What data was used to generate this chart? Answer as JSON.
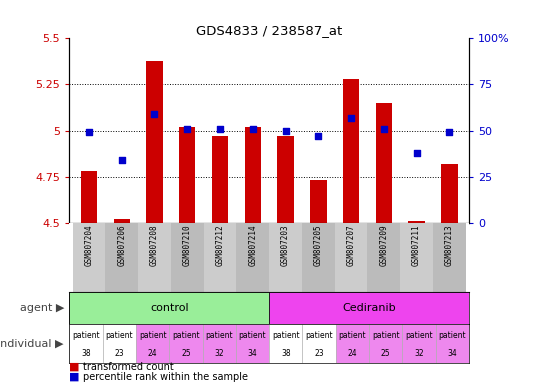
{
  "title": "GDS4833 / 238587_at",
  "samples": [
    "GSM807204",
    "GSM807206",
    "GSM807208",
    "GSM807210",
    "GSM807212",
    "GSM807214",
    "GSM807203",
    "GSM807205",
    "GSM807207",
    "GSM807209",
    "GSM807211",
    "GSM807213"
  ],
  "transformed_counts": [
    4.78,
    4.52,
    5.38,
    5.02,
    4.97,
    5.02,
    4.97,
    4.73,
    5.28,
    5.15,
    4.51,
    4.82
  ],
  "percentile_ranks": [
    49,
    34,
    59,
    51,
    51,
    51,
    50,
    47,
    57,
    51,
    38,
    49
  ],
  "ylim_left": [
    4.5,
    5.5
  ],
  "ylim_right": [
    0,
    100
  ],
  "yticks_left": [
    4.5,
    4.75,
    5.0,
    5.25,
    5.5
  ],
  "ytick_labels_left": [
    "4.5",
    "4.75",
    "5",
    "5.25",
    "5.5"
  ],
  "yticks_right": [
    0,
    25,
    50,
    75,
    100
  ],
  "ytick_labels_right": [
    "0",
    "25",
    "50",
    "75",
    "100%"
  ],
  "bar_color": "#cc0000",
  "dot_color": "#0000cc",
  "bar_bottom": 4.5,
  "groups": [
    {
      "label": "control",
      "start": 0,
      "end": 6,
      "color": "#99ee99"
    },
    {
      "label": "Cediranib",
      "start": 6,
      "end": 12,
      "color": "#ee44ee"
    }
  ],
  "individuals": [
    {
      "label": "patient\n38",
      "color": "#ffffff",
      "idx": 0
    },
    {
      "label": "patient\n23",
      "color": "#ffffff",
      "idx": 1
    },
    {
      "label": "patient\n24",
      "color": "#ee88ee",
      "idx": 2
    },
    {
      "label": "patient\n25",
      "color": "#ee88ee",
      "idx": 3
    },
    {
      "label": "patient\n32",
      "color": "#ee88ee",
      "idx": 4
    },
    {
      "label": "patient\n34",
      "color": "#ee88ee",
      "idx": 5
    },
    {
      "label": "patient\n38",
      "color": "#ffffff",
      "idx": 6
    },
    {
      "label": "patient\n23",
      "color": "#ffffff",
      "idx": 7
    },
    {
      "label": "patient\n24",
      "color": "#ee88ee",
      "idx": 8
    },
    {
      "label": "patient\n25",
      "color": "#ee88ee",
      "idx": 9
    },
    {
      "label": "patient\n32",
      "color": "#ee88ee",
      "idx": 10
    },
    {
      "label": "patient\n34",
      "color": "#ee88ee",
      "idx": 11
    }
  ],
  "legend_items": [
    {
      "label": "transformed count",
      "color": "#cc0000"
    },
    {
      "label": "percentile rank within the sample",
      "color": "#0000cc"
    }
  ],
  "agent_label": "agent",
  "individual_label": "individual",
  "bar_width": 0.5,
  "dot_size": 25,
  "background_color": "#ffffff",
  "tick_label_color_left": "#cc0000",
  "tick_label_color_right": "#0000cc",
  "sample_bg_colors": [
    "#cccccc",
    "#bbbbbb",
    "#cccccc",
    "#bbbbbb",
    "#cccccc",
    "#bbbbbb",
    "#cccccc",
    "#bbbbbb",
    "#cccccc",
    "#bbbbbb",
    "#cccccc",
    "#bbbbbb"
  ]
}
